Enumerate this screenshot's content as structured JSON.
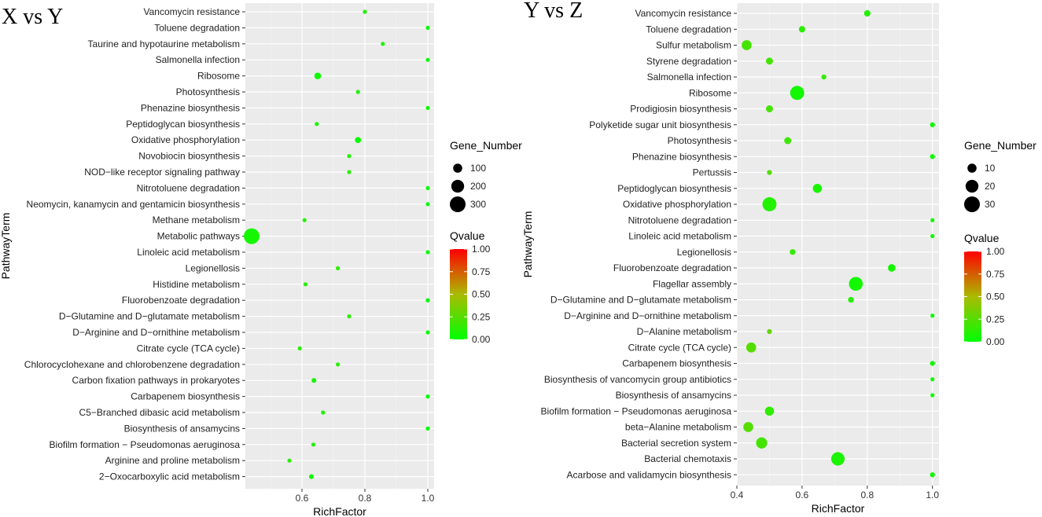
{
  "colors": {
    "low": "#00ff00",
    "high": "#ff0000",
    "panel": "#ebebeb",
    "grid": "#ffffff"
  },
  "chart_data": [
    {
      "type": "scatter",
      "title": "X vs Y",
      "xlabel": "RichFactor",
      "ylabel": "PathwayTerm",
      "xlim": [
        0.42,
        1.02
      ],
      "xticks": [
        0.6,
        0.8,
        1.0
      ],
      "xtick_labels": [
        "0.6",
        "0.8",
        "1.0"
      ],
      "terms": [
        "Vancomycin resistance",
        "Toluene degradation",
        "Taurine and hypotaurine metabolism",
        "Salmonella infection",
        "Ribosome",
        "Photosynthesis",
        "Phenazine biosynthesis",
        "Peptidoglycan biosynthesis",
        "Oxidative phosphorylation",
        "Novobiocin biosynthesis",
        "NOD−like receptor signaling pathway",
        "Nitrotoluene degradation",
        "Neomycin, kanamycin and gentamicin biosynthesis",
        "Methane metabolism",
        "Metabolic pathways",
        "Linoleic acid metabolism",
        "Legionellosis",
        "Histidine metabolism",
        "Fluorobenzoate degradation",
        "D−Glutamine and D−glutamate metabolism",
        "D−Arginine and D−ornithine metabolism",
        "Citrate cycle (TCA cycle)",
        "Chlorocyclohexane and chlorobenzene degradation",
        "Carbon fixation pathways in prokaryotes",
        "Carbapenem biosynthesis",
        "C5−Branched dibasic acid metabolism",
        "Biosynthesis of ansamycins",
        "Biofilm formation − Pseudomonas aeruginosa",
        "Arginine and proline metabolism",
        "2−Oxocarboxylic acid metabolism"
      ],
      "rich_factor": [
        0.8,
        1.0,
        0.857,
        1.0,
        0.65,
        0.778,
        1.0,
        0.647,
        0.778,
        0.75,
        0.75,
        1.0,
        1.0,
        0.608,
        0.44,
        1.0,
        0.714,
        0.611,
        1.0,
        0.75,
        1.0,
        0.593,
        0.714,
        0.638,
        1.0,
        0.667,
        1.0,
        0.636,
        0.56,
        0.63
      ],
      "gene_number": [
        8,
        12,
        10,
        12,
        55,
        20,
        8,
        18,
        45,
        12,
        10,
        5,
        5,
        18,
        300,
        5,
        10,
        18,
        22,
        10,
        5,
        18,
        12,
        28,
        8,
        14,
        5,
        18,
        20,
        28
      ],
      "qvalue": [
        0.1,
        0.02,
        0.08,
        0.02,
        0.05,
        0.09,
        0.03,
        0.08,
        0.02,
        0.1,
        0.12,
        0.02,
        0.02,
        0.1,
        0.06,
        0.02,
        0.12,
        0.1,
        0.02,
        0.12,
        0.02,
        0.1,
        0.12,
        0.06,
        0.02,
        0.1,
        0.02,
        0.1,
        0.14,
        0.06
      ],
      "size_legend": {
        "title": "Gene_Number",
        "values": [
          100,
          200,
          300
        ],
        "labels": [
          "100",
          "200",
          "300"
        ]
      },
      "color_legend": {
        "title": "Qvalue",
        "values": [
          1.0,
          0.75,
          0.5,
          0.25,
          0.0
        ],
        "labels": [
          "1.00",
          "0.75",
          "0.50",
          "0.25",
          "0.00"
        ]
      }
    },
    {
      "type": "scatter",
      "title": "Y vs Z",
      "xlabel": "RichFactor",
      "ylabel": "PathwayTerm",
      "xlim": [
        0.4,
        1.02
      ],
      "xticks": [
        0.4,
        0.6,
        0.8,
        1.0
      ],
      "xtick_labels": [
        "0.4",
        "0.6",
        "0.8",
        "1.0"
      ],
      "terms": [
        "Vancomycin resistance",
        "Toluene degradation",
        "Sulfur metabolism",
        "Styrene degradation",
        "Salmonella infection",
        "Ribosome",
        "Prodigiosin biosynthesis",
        "Polyketide sugar unit biosynthesis",
        "Photosynthesis",
        "Phenazine biosynthesis",
        "Pertussis",
        "Peptidoglycan biosynthesis",
        "Oxidative phosphorylation",
        "Nitrotoluene degradation",
        "Linoleic acid metabolism",
        "Legionellosis",
        "Fluorobenzoate degradation",
        "Flagellar assembly",
        "D−Glutamine and D−glutamate metabolism",
        "D−Arginine and D−ornithine metabolism",
        "D−Alanine metabolism",
        "Citrate cycle (TCA cycle)",
        "Carbapenem biosynthesis",
        "Biosynthesis of vancomycin group antibiotics",
        "Biosynthesis of ansamycins",
        "Biofilm formation − Pseudomonas aeruginosa",
        "beta−Alanine metabolism",
        "Bacterial secretion system",
        "Bacterial chemotaxis",
        "Acarbose and validamycin biosynthesis"
      ],
      "rich_factor": [
        0.8,
        0.6,
        0.43,
        0.5,
        0.667,
        0.585,
        0.5,
        1.0,
        0.556,
        1.0,
        0.5,
        0.647,
        0.5,
        1.0,
        1.0,
        0.571,
        0.875,
        0.765,
        0.75,
        1.0,
        0.5,
        0.444,
        1.0,
        1.0,
        1.0,
        0.5,
        0.435,
        0.476,
        0.71,
        1.0
      ],
      "gene_number": [
        5,
        5,
        12,
        6,
        3,
        24,
        6,
        3,
        6,
        3,
        3,
        10,
        24,
        1,
        1,
        4,
        7,
        23,
        4,
        1,
        3,
        12,
        3,
        1,
        1,
        10,
        12,
        15,
        22,
        3
      ],
      "qvalue": [
        0.1,
        0.12,
        0.2,
        0.2,
        0.15,
        0.05,
        0.2,
        0.04,
        0.18,
        0.04,
        0.25,
        0.08,
        0.1,
        0.04,
        0.04,
        0.15,
        0.06,
        0.05,
        0.1,
        0.04,
        0.3,
        0.25,
        0.04,
        0.04,
        0.04,
        0.14,
        0.25,
        0.2,
        0.08,
        0.04
      ],
      "size_legend": {
        "title": "Gene_Number",
        "values": [
          10,
          20,
          30
        ],
        "labels": [
          "10",
          "20",
          "30"
        ]
      },
      "color_legend": {
        "title": "Qvalue",
        "values": [
          1.0,
          0.75,
          0.5,
          0.25,
          0.0
        ],
        "labels": [
          "1.00",
          "0.75",
          "0.50",
          "0.25",
          "0.00"
        ]
      }
    }
  ]
}
